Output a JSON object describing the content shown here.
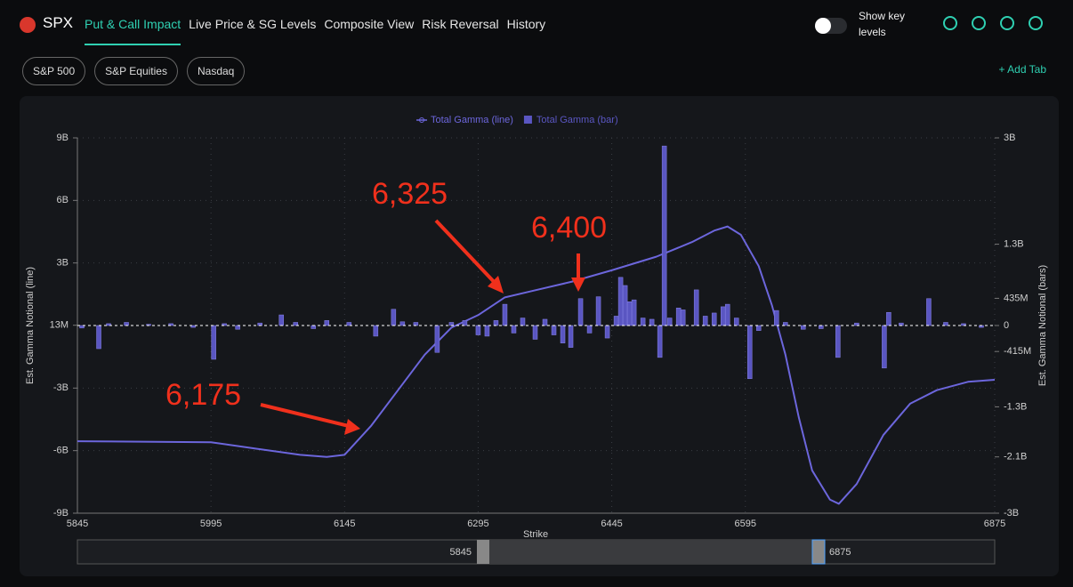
{
  "header": {
    "symbol": "SPX",
    "tabs": [
      "Put & Call Impact",
      "Live Price & SG Levels",
      "Composite View",
      "Risk Reversal",
      "History"
    ],
    "toggle_label": "Show key levels"
  },
  "sub_tabs": {
    "chips": [
      "S&P 500",
      "S&P Equities",
      "Nasdaq"
    ],
    "add_tab": "+ Add Tab"
  },
  "chart_data": {
    "type": "combo",
    "x_label": "Strike",
    "y_label": "Est. Gamma Notional (line)",
    "y2_label": "Est. Gamma Notional (bars)",
    "xlim": [
      5845,
      6875
    ],
    "xticks": [
      5845,
      5995,
      6145,
      6295,
      6445,
      6595,
      6875
    ],
    "ylim": [
      -9,
      9
    ],
    "yticks": [
      {
        "value": -9,
        "label": "-9B"
      },
      {
        "value": -6,
        "label": "-6B"
      },
      {
        "value": -3,
        "label": "-3B"
      },
      {
        "value": 0.013,
        "label": "13M"
      },
      {
        "value": 3,
        "label": "3B"
      },
      {
        "value": 6,
        "label": "6B"
      },
      {
        "value": 9,
        "label": "9B"
      }
    ],
    "y2lim": [
      -3,
      3
    ],
    "y2ticks": [
      {
        "value": -3,
        "label": "-3B"
      },
      {
        "value": -2.1,
        "label": "-2.1B"
      },
      {
        "value": -1.3,
        "label": "-1.3B"
      },
      {
        "value": -0.415,
        "label": "-415M"
      },
      0,
      {
        "value": 0.435,
        "label": "435M"
      },
      {
        "value": 1.3,
        "label": "1.3B"
      },
      {
        "value": 3,
        "label": "3B"
      }
    ],
    "grid": true,
    "series": [
      {
        "name": "Total Gamma (line)",
        "type": "line",
        "color": "#6c66dc",
        "x": [
          5845,
          5995,
          6045,
          6095,
          6125,
          6145,
          6175,
          6205,
          6235,
          6265,
          6295,
          6325,
          6355,
          6400,
          6445,
          6495,
          6535,
          6560,
          6575,
          6590,
          6610,
          6625,
          6640,
          6655,
          6670,
          6690,
          6700,
          6720,
          6750,
          6780,
          6810,
          6845,
          6875
        ],
        "values": [
          -5.55,
          -5.6,
          -5.9,
          -6.2,
          -6.3,
          -6.2,
          -4.8,
          -3.1,
          -1.4,
          -0.1,
          0.5,
          1.35,
          1.65,
          2.1,
          2.65,
          3.3,
          4.0,
          4.55,
          4.75,
          4.35,
          2.85,
          0.95,
          -1.4,
          -4.4,
          -6.95,
          -8.35,
          -8.55,
          -7.6,
          -5.25,
          -3.75,
          -3.1,
          -2.7,
          -2.6
        ]
      },
      {
        "name": "Total Gamma (bar)",
        "type": "bar",
        "axis": "y2",
        "color": "#5a56c2",
        "x": [
          5850,
          5869,
          5880,
          5900,
          5925,
          5950,
          5975,
          5998,
          6010,
          6025,
          6050,
          6074,
          6090,
          6110,
          6125,
          6150,
          6180,
          6200,
          6210,
          6225,
          6249,
          6265,
          6280,
          6295,
          6305,
          6315,
          6325,
          6335,
          6345,
          6359,
          6370,
          6380,
          6390,
          6399,
          6410,
          6420,
          6430,
          6440,
          6450,
          6455,
          6460,
          6465,
          6470,
          6480,
          6490,
          6499,
          6504,
          6510,
          6520,
          6525,
          6540,
          6550,
          6560,
          6570,
          6575,
          6585,
          6600,
          6610,
          6630,
          6640,
          6660,
          6680,
          6699,
          6720,
          6751,
          6756,
          6770,
          6801,
          6820,
          6840,
          6860
        ],
        "values": [
          -0.04,
          -0.37,
          0.03,
          0.05,
          0.02,
          0.03,
          -0.03,
          -0.54,
          0.03,
          -0.06,
          0.04,
          0.17,
          0.05,
          -0.05,
          0.08,
          0.05,
          -0.17,
          0.26,
          0.06,
          0.05,
          -0.43,
          0.05,
          0.08,
          -0.15,
          -0.17,
          0.08,
          0.34,
          -0.12,
          0.12,
          -0.22,
          0.1,
          -0.15,
          -0.28,
          -0.35,
          0.43,
          -0.12,
          0.46,
          -0.2,
          0.15,
          0.77,
          0.64,
          0.38,
          0.41,
          0.12,
          0.1,
          -0.51,
          2.87,
          0.12,
          0.28,
          0.25,
          0.57,
          0.15,
          0.2,
          0.3,
          0.34,
          0.12,
          -0.85,
          -0.08,
          0.24,
          0.05,
          -0.06,
          -0.05,
          -0.51,
          0.04,
          -0.68,
          0.21,
          0.04,
          0.43,
          0.05,
          0.03,
          -0.03
        ]
      }
    ],
    "annotations": [
      {
        "text": "6,325"
      },
      {
        "text": "6,400"
      },
      {
        "text": "6,175"
      }
    ]
  }
}
